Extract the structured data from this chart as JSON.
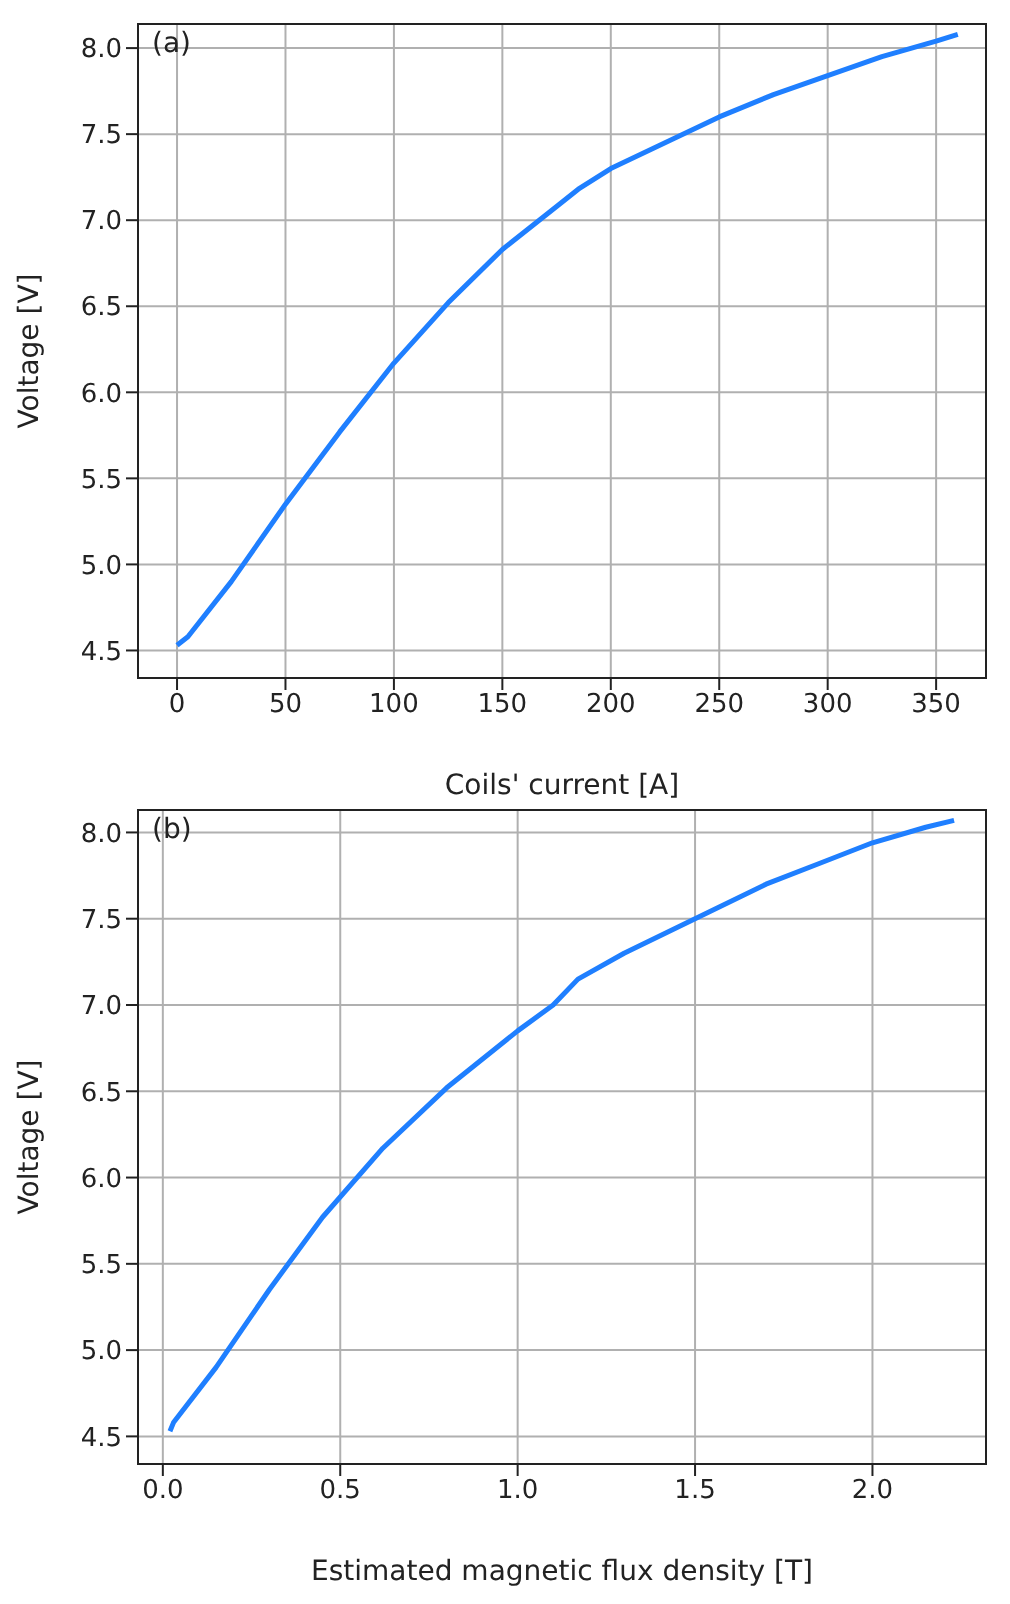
{
  "chart_data": [
    {
      "type": "line",
      "title": "(a)",
      "xlabel": "Coils' current [A]",
      "ylabel": "Voltage [V]",
      "grid": true,
      "xlim": [
        -18,
        373
      ],
      "ylim": [
        4.34,
        8.14
      ],
      "xticks": [
        0,
        50,
        100,
        150,
        200,
        250,
        300,
        350
      ],
      "yticks": [
        {
          "value": 4.5,
          "label": "4.5"
        },
        {
          "value": 5,
          "label": "5.0"
        },
        {
          "value": 5.5,
          "label": "5.5"
        },
        {
          "value": 6,
          "label": "6.0"
        },
        {
          "value": 6.5,
          "label": "6.5"
        },
        {
          "value": 7,
          "label": "7.0"
        },
        {
          "value": 7.5,
          "label": "7.5"
        },
        {
          "value": 8,
          "label": "8.0"
        }
      ],
      "series": [
        {
          "color": "#1f7fff",
          "x": [
            0,
            5,
            25,
            50,
            75,
            100,
            125,
            150,
            175,
            185,
            200,
            225,
            250,
            275,
            300,
            325,
            350,
            360
          ],
          "values": [
            4.53,
            4.58,
            4.9,
            5.35,
            5.77,
            6.17,
            6.52,
            6.83,
            7.08,
            7.18,
            7.3,
            7.45,
            7.6,
            7.73,
            7.84,
            7.95,
            8.04,
            8.08
          ]
        }
      ]
    },
    {
      "type": "line",
      "title": "(b)",
      "xlabel": "Estimated magnetic flux density [T]",
      "ylabel": "Voltage [V]",
      "grid": true,
      "xlim": [
        -0.07,
        2.32
      ],
      "ylim": [
        4.34,
        8.13
      ],
      "xticks": [
        {
          "value": 0,
          "label": "0.0"
        },
        {
          "value": 0.5,
          "label": "0.5"
        },
        {
          "value": 1,
          "label": "1.0"
        },
        {
          "value": 1.5,
          "label": "1.5"
        },
        {
          "value": 2,
          "label": "2.0"
        }
      ],
      "yticks": [
        {
          "value": 4.5,
          "label": "4.5"
        },
        {
          "value": 5,
          "label": "5.0"
        },
        {
          "value": 5.5,
          "label": "5.5"
        },
        {
          "value": 6,
          "label": "6.0"
        },
        {
          "value": 6.5,
          "label": "6.5"
        },
        {
          "value": 7,
          "label": "7.0"
        },
        {
          "value": 7.5,
          "label": "7.5"
        },
        {
          "value": 8,
          "label": "8.0"
        }
      ],
      "series": [
        {
          "color": "#1f7fff",
          "x": [
            0.02,
            0.03,
            0.15,
            0.3,
            0.45,
            0.62,
            0.8,
            1.0,
            1.1,
            1.17,
            1.3,
            1.5,
            1.7,
            1.85,
            2.0,
            2.15,
            2.23
          ],
          "values": [
            4.53,
            4.58,
            4.9,
            5.35,
            5.77,
            6.17,
            6.52,
            6.85,
            7.0,
            7.15,
            7.3,
            7.5,
            7.7,
            7.82,
            7.94,
            8.03,
            8.07
          ]
        }
      ]
    }
  ]
}
